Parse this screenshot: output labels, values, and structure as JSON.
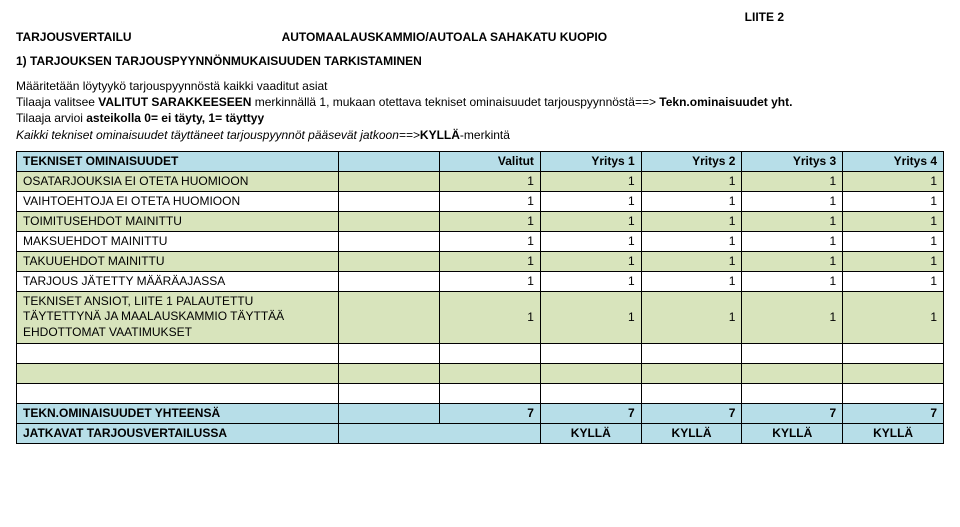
{
  "header": {
    "liite": "LIITE 2",
    "left": "TARJOUSVERTAILU",
    "right": "AUTOMAALAUSKAMMIO/AUTOALA SAHAKATU KUOPIO"
  },
  "section1": {
    "title": "1) TARJOUKSEN TARJOUSPYYNNÖNMUKAISUUDEN TARKISTAMINEN",
    "line1a": "Määritetään löytyykö tarjouspyynnöstä kaikki vaaditut asiat",
    "line2a": "Tilaaja valitsee ",
    "line2b": "VALITUT SARAKKEESEEN",
    "line2c": " merkinnällä 1, mukaan otettava tekniset ominaisuudet tarjouspyynnöstä==> ",
    "line2d": "Tekn.ominaisuudet yht.",
    "line3a": "Tilaaja arvioi ",
    "line3b": "asteikolla 0= ei täyty, 1= täyttyy",
    "line4a": "Kaikki tekniset ominaisuudet täyttäneet tarjouspyynnöt pääsevät jatkoon==>",
    "line4b": "KYLLÄ",
    "line4c": "-merkintä"
  },
  "table": {
    "headers": {
      "c0": "TEKNISET OMINAISUUDET",
      "c1": "",
      "c2": "Valitut",
      "c3": "Yritys 1",
      "c4": "Yritys 2",
      "c5": "Yritys 3",
      "c6": "Yritys 4"
    },
    "rows": [
      {
        "label": "OSATARJOUKSIA EI OTETA HUOMIOON",
        "vals": [
          "",
          "1",
          "1",
          "1",
          "1",
          "1"
        ],
        "cls": "green"
      },
      {
        "label": "VAIHTOEHTOJA EI OTETA HUOMIOON",
        "vals": [
          "",
          "1",
          "1",
          "1",
          "1",
          "1"
        ],
        "cls": "white"
      },
      {
        "label": "TOIMITUSEHDOT MAINITTU",
        "vals": [
          "",
          "1",
          "1",
          "1",
          "1",
          "1"
        ],
        "cls": "green"
      },
      {
        "label": "MAKSUEHDOT MAINITTU",
        "vals": [
          "",
          "1",
          "1",
          "1",
          "1",
          "1"
        ],
        "cls": "white"
      },
      {
        "label": "TAKUUEHDOT MAINITTU",
        "vals": [
          "",
          "1",
          "1",
          "1",
          "1",
          "1"
        ],
        "cls": "green"
      },
      {
        "label": "TARJOUS JÄTETTY MÄÄRÄAJASSA",
        "vals": [
          "",
          "1",
          "1",
          "1",
          "1",
          "1"
        ],
        "cls": "white"
      },
      {
        "label": "TEKNISET ANSIOT, LIITE 1 PALAUTETTU TÄYTETTYNÄ JA MAALAUSKAMMIO TÄYTTÄÄ EHDOTTOMAT VAATIMUKSET",
        "vals": [
          "",
          "1",
          "1",
          "1",
          "1",
          "1"
        ],
        "cls": "green",
        "multiline": true
      },
      {
        "label": "",
        "vals": [
          "",
          "",
          "",
          "",
          "",
          ""
        ],
        "cls": "white"
      },
      {
        "label": "",
        "vals": [
          "",
          "",
          "",
          "",
          "",
          ""
        ],
        "cls": "green"
      },
      {
        "label": "",
        "vals": [
          "",
          "",
          "",
          "",
          "",
          ""
        ],
        "cls": "white"
      }
    ],
    "sumrow": {
      "label": "TEKN.OMINAISUUDET YHTEENSÄ",
      "vals": [
        "",
        "7",
        "7",
        "7",
        "7",
        "7"
      ]
    },
    "finalrow": {
      "label": "JATKAVAT TARJOUSVERTAILUSSA",
      "vals": [
        "",
        "KYLLÄ",
        "KYLLÄ",
        "KYLLÄ",
        "KYLLÄ"
      ]
    }
  },
  "colors": {
    "header_bg": "#b7dee8",
    "green_bg": "#d8e4bc",
    "white_bg": "#ffffff",
    "border": "#000000"
  }
}
